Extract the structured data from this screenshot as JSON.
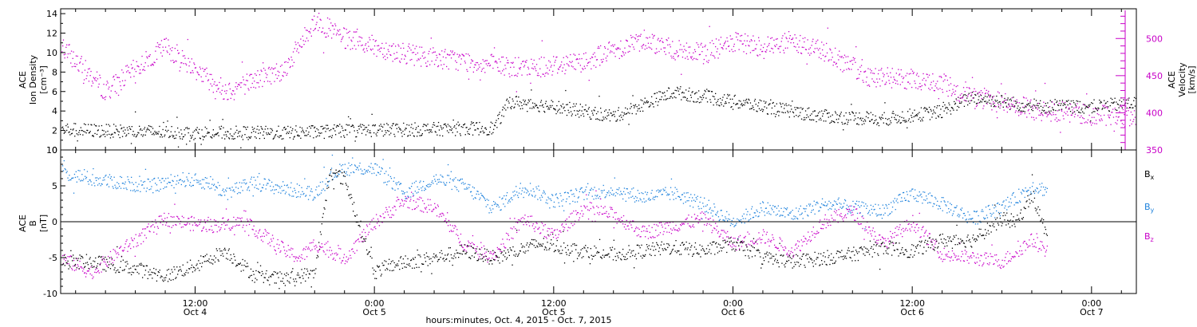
{
  "chart_data": [
    {
      "type": "scatter",
      "panel": "top",
      "ylabel_left": [
        "ACE",
        "Ion Density",
        "[cm⁻³]"
      ],
      "ylabel_right": [
        "ACE",
        "Velocity",
        "[km/s]"
      ],
      "y_left_ticks": [
        0,
        2,
        4,
        6,
        8,
        10,
        12,
        14
      ],
      "y_left_lim": [
        0,
        14.5
      ],
      "y_right_ticks": [
        350,
        400,
        450,
        500
      ],
      "y_right_lim": [
        350,
        540
      ],
      "series": [
        {
          "axis": "left",
          "color": "#000000",
          "x": [
            0,
            6,
            12,
            18,
            24,
            29,
            32,
            33,
            36,
            40,
            44,
            48,
            52,
            54,
            58,
            62,
            64,
            68,
            72,
            76,
            80,
            84,
            88,
            90,
            91
          ],
          "y": [
            2.3,
            2.0,
            1.8,
            1.8,
            2.1,
            2.2,
            2.3,
            5.0,
            4.5,
            3.5,
            6.0,
            5.0,
            4.0,
            3.5,
            3.2,
            4.0,
            5.5,
            4.5,
            4.5,
            5.0,
            6.0,
            6.5,
            7.5,
            11.0,
            8.5
          ]
        },
        {
          "axis": "right",
          "color": "#c800c8",
          "x": [
            0,
            3,
            6,
            10,
            14,
            18,
            20,
            22,
            26,
            30,
            32,
            34,
            38,
            42,
            44,
            46,
            48,
            50,
            52,
            54,
            57,
            60,
            62,
            64,
            66,
            68,
            72,
            76,
            80,
            84,
            88,
            91
          ],
          "y": [
            480,
            490,
            430,
            490,
            430,
            460,
            525,
            500,
            480,
            470,
            465,
            460,
            470,
            500,
            485,
            480,
            495,
            490,
            495,
            485,
            450,
            445,
            440,
            420,
            415,
            405,
            398,
            395,
            392,
            390,
            395,
            390
          ]
        }
      ]
    },
    {
      "type": "scatter",
      "panel": "bottom",
      "ylabel": [
        "ACE",
        "B",
        "[nT]"
      ],
      "y_ticks": [
        -10,
        -5,
        0,
        5,
        10
      ],
      "ylim": [
        -10,
        10
      ],
      "zero_line": true,
      "legend": [
        "Bx",
        "By",
        "Bz"
      ],
      "x_tick_labels": [
        {
          "time": "12:00",
          "date": "Oct 4"
        },
        {
          "time": "0:00",
          "date": "Oct 5"
        },
        {
          "time": "12:00",
          "date": "Oct 5"
        },
        {
          "time": "0:00",
          "date": "Oct 6"
        },
        {
          "time": "12:00",
          "date": "Oct 6"
        },
        {
          "time": "0:00",
          "date": "Oct 7"
        }
      ],
      "x_tick_hours": [
        12,
        24,
        36,
        48,
        60,
        72
      ],
      "xlim": [
        3,
        75
      ],
      "xlabel": "hours:minutes, Oct.  4, 2015 - Oct.  7, 2015",
      "series": [
        {
          "name": "Bx",
          "color": "#000000",
          "x": [
            3,
            5,
            8,
            10,
            12,
            14,
            16,
            18,
            20,
            21,
            22,
            24,
            25,
            28,
            30,
            32,
            35,
            38,
            40,
            44,
            46,
            48,
            50,
            52,
            54,
            56,
            58,
            60,
            62,
            64,
            66,
            67,
            68,
            69
          ],
          "y": [
            -5.5,
            -5.5,
            -6.5,
            -7.5,
            -6.0,
            -4.0,
            -7.5,
            -8.0,
            -7.0,
            7.0,
            6.0,
            -7.0,
            -6.0,
            -5.0,
            -4.0,
            -5.0,
            -3.0,
            -4.0,
            -4.5,
            -3.5,
            -4.0,
            -3.0,
            -5.0,
            -5.5,
            -5.0,
            -4.5,
            -3.5,
            -4.0,
            -2.5,
            -2.5,
            0.5,
            0.0,
            4.0,
            -2.0
          ]
        },
        {
          "name": "By",
          "color": "#1e82dc",
          "x": [
            3,
            5,
            7,
            9,
            11,
            13,
            14,
            16,
            17,
            20,
            21,
            22,
            24,
            26,
            28,
            30,
            32,
            34,
            36,
            38,
            40,
            42,
            44,
            46,
            48,
            50,
            52,
            54,
            56,
            58,
            60,
            62,
            64,
            66,
            68,
            69
          ],
          "y": [
            7.0,
            6.0,
            5.5,
            5.0,
            6.0,
            5.5,
            4.0,
            5.5,
            5.0,
            4.0,
            6.5,
            7.5,
            7.5,
            4.0,
            6.0,
            5.0,
            2.0,
            5.0,
            3.0,
            4.0,
            4.5,
            3.5,
            4.0,
            2.5,
            0.0,
            2.0,
            1.0,
            2.5,
            2.0,
            1.5,
            4.0,
            2.5,
            0.5,
            2.0,
            5.0,
            4.5
          ]
        },
        {
          "name": "Bz",
          "color": "#c800c8",
          "x": [
            3,
            5,
            7,
            9,
            10,
            11,
            13,
            15,
            16,
            18,
            19,
            20,
            22,
            24,
            26,
            28,
            30,
            32,
            34,
            36,
            38,
            40,
            42,
            44,
            46,
            48,
            50,
            52,
            54,
            56,
            58,
            60,
            62,
            64,
            66,
            68,
            69
          ],
          "y": [
            -5.0,
            -7.0,
            -4.0,
            -1.0,
            0.5,
            0.0,
            -0.5,
            0.0,
            -1.0,
            -4.0,
            -5.0,
            -3.0,
            -5.0,
            0.0,
            3.0,
            2.0,
            -3.0,
            -4.5,
            0.5,
            -2.0,
            2.0,
            1.0,
            -1.5,
            -0.5,
            0.5,
            -3.0,
            -2.0,
            -4.0,
            0.0,
            1.5,
            -3.0,
            0.0,
            -4.5,
            -5.0,
            -5.5,
            -2.5,
            -4.0
          ]
        }
      ]
    }
  ]
}
